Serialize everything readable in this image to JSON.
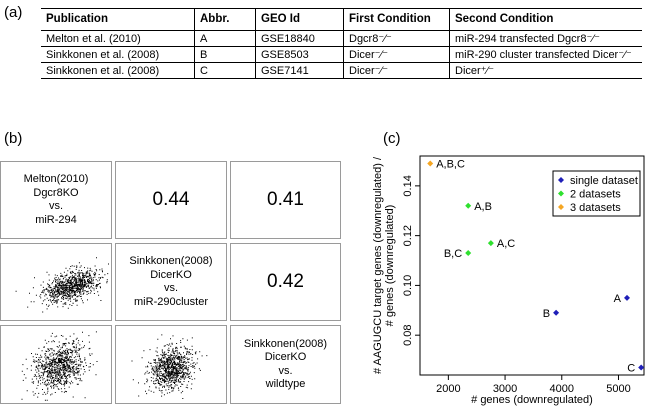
{
  "panel_labels": {
    "a": "(a)",
    "b": "(b)",
    "c": "(c)"
  },
  "table": {
    "headers": [
      "Publication",
      "Abbr.",
      "GEO Id",
      "First Condition",
      "Second Condition"
    ],
    "rows": [
      [
        "Melton et al. (2010)",
        "A",
        "GSE18840",
        "Dgcr8⁻⁄⁻",
        "miR-294 transfected Dgcr8⁻⁄⁻"
      ],
      [
        "Sinkkonen et al. (2008)",
        "B",
        "GSE8503",
        "Dicer⁻⁄⁻",
        "miR-290 cluster transfected Dicer⁻⁄⁻"
      ],
      [
        "Sinkkonen et al. (2008)",
        "C",
        "GSE7141",
        "Dicer⁻⁄⁻",
        "Dicer⁺⁄⁻"
      ]
    ]
  },
  "pairs": {
    "diag": [
      [
        "Melton(2010)",
        "Dgcr8KO",
        "vs.",
        "miR-294"
      ],
      [
        "Sinkkonen(2008)",
        "DicerKO",
        "vs.",
        "miR-290cluster"
      ],
      [
        "Sinkkonen(2008)",
        "DicerKO",
        "vs.",
        "wildtype"
      ]
    ],
    "correlations": {
      "c12": "0.44",
      "c13": "0.41",
      "c23": "0.42"
    }
  },
  "chart_data": {
    "type": "scatter",
    "xlabel": "# genes (downregulated)",
    "ylabel": [
      "# AAGUGCU target genes (downregulated) /",
      "# genes (downregulated)"
    ],
    "xlim": [
      1500,
      5450
    ],
    "ylim": [
      0.064,
      0.152
    ],
    "xticks": [
      2000,
      3000,
      4000,
      5000
    ],
    "yticks": [
      0.08,
      0.1,
      0.12,
      0.14
    ],
    "legend_position": "top-right",
    "series": [
      {
        "name": "single dataset",
        "color": "#1f1fb8",
        "points": [
          {
            "x": 3900,
            "y": 0.089,
            "label": "B"
          },
          {
            "x": 5150,
            "y": 0.095,
            "label": "A"
          },
          {
            "x": 5400,
            "y": 0.067,
            "label": "C"
          }
        ]
      },
      {
        "name": "2 datasets",
        "color": "#2ee02e",
        "points": [
          {
            "x": 2350,
            "y": 0.132,
            "label": "A,B"
          },
          {
            "x": 2750,
            "y": 0.117,
            "label": "A,C"
          },
          {
            "x": 2350,
            "y": 0.113,
            "label": "B,C"
          }
        ]
      },
      {
        "name": "3 datasets",
        "color": "#f5a623",
        "points": [
          {
            "x": 1680,
            "y": 0.149,
            "label": "A,B,C"
          }
        ]
      }
    ]
  }
}
